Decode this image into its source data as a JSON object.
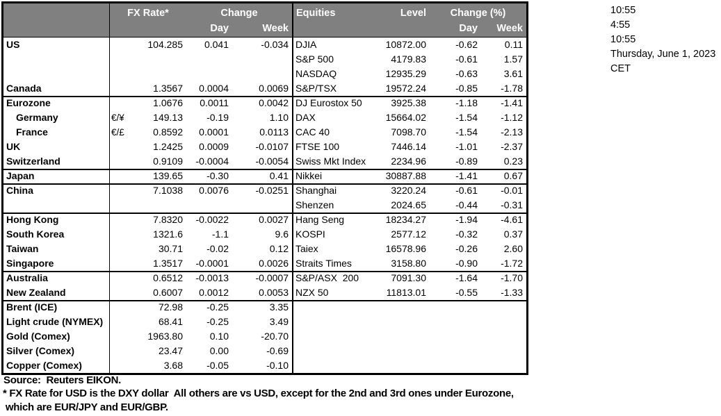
{
  "table": {
    "header": {
      "fx_rate": "FX Rate*",
      "change": "Change",
      "day": "Day",
      "week": "Week",
      "equities": "Equities",
      "level": "Level",
      "change_pct": "Change (%)",
      "day2": "Day",
      "week2": "Week"
    },
    "groups": [
      {
        "rows": [
          {
            "label": "US",
            "pair": "",
            "fx": "104.285",
            "fx_day": "0.041",
            "fx_week": "-0.034",
            "eq": "DJIA",
            "level": "10872.00",
            "eq_day": "-0.62",
            "eq_week": "0.11"
          },
          {
            "label": "",
            "pair": "",
            "fx": "",
            "fx_day": "",
            "fx_week": "",
            "eq": "S&P 500",
            "level": "4179.83",
            "eq_day": "-0.61",
            "eq_week": "1.57"
          },
          {
            "label": "",
            "pair": "",
            "fx": "",
            "fx_day": "",
            "fx_week": "",
            "eq": "NASDAQ",
            "level": "12935.29",
            "eq_day": "-0.63",
            "eq_week": "3.61"
          },
          {
            "label": "Canada",
            "pair": "",
            "fx": "1.3567",
            "fx_day": "0.0004",
            "fx_week": "0.0069",
            "eq": "S&P/TSX",
            "level": "19572.24",
            "eq_day": "-0.85",
            "eq_week": "-1.78"
          }
        ]
      },
      {
        "rows": [
          {
            "label": "Eurozone",
            "pair": "",
            "fx": "1.0676",
            "fx_day": "0.0011",
            "fx_week": "0.0042",
            "eq": "DJ Eurostox 50",
            "level": "3925.38",
            "eq_day": "-1.18",
            "eq_week": "-1.41"
          },
          {
            "label": "Germany",
            "indent": true,
            "pair": "€/¥",
            "fx": "149.13",
            "fx_day": "-0.19",
            "fx_week": "1.10",
            "eq": "DAX",
            "level": "15664.02",
            "eq_day": "-1.54",
            "eq_week": "-1.12"
          },
          {
            "label": "France",
            "indent": true,
            "pair": "€/£",
            "fx": "0.8592",
            "fx_day": "0.0001",
            "fx_week": "0.0113",
            "eq": "CAC 40",
            "level": "7098.70",
            "eq_day": "-1.54",
            "eq_week": "-2.13"
          },
          {
            "label": "UK",
            "pair": "",
            "fx": "1.2425",
            "fx_day": "0.0009",
            "fx_week": "-0.0107",
            "eq": "FTSE 100",
            "level": "7446.14",
            "eq_day": "-1.01",
            "eq_week": "-2.37"
          },
          {
            "label": "Switzerland",
            "pair": "",
            "fx": "0.9109",
            "fx_day": "-0.0004",
            "fx_week": "-0.0054",
            "eq": "Swiss Mkt Index",
            "level": "2234.96",
            "eq_day": "-0.89",
            "eq_week": "0.23"
          }
        ]
      },
      {
        "rows": [
          {
            "label": "Japan",
            "pair": "",
            "fx": "139.65",
            "fx_day": "-0.30",
            "fx_week": "0.41",
            "eq": "Nikkei",
            "level": "30887.88",
            "eq_day": "-1.41",
            "eq_week": "0.67"
          }
        ]
      },
      {
        "rows": [
          {
            "label": "China",
            "pair": "",
            "fx": "7.1038",
            "fx_day": "0.0076",
            "fx_week": "-0.0251",
            "eq": "Shanghai",
            "level": "3220.24",
            "eq_day": "-0.61",
            "eq_week": "-0.01"
          },
          {
            "label": "",
            "pair": "",
            "fx": "",
            "fx_day": "",
            "fx_week": "",
            "eq": "Shenzen",
            "level": "2024.65",
            "eq_day": "-0.44",
            "eq_week": "-0.31"
          }
        ]
      },
      {
        "rows": [
          {
            "label": "Hong Kong",
            "pair": "",
            "fx": "7.8320",
            "fx_day": "-0.0022",
            "fx_week": "0.0027",
            "eq": "Hang Seng",
            "level": "18234.27",
            "eq_day": "-1.94",
            "eq_week": "-4.61"
          },
          {
            "label": "South Korea",
            "pair": "",
            "fx": "1321.6",
            "fx_day": "-1.1",
            "fx_week": "9.6",
            "eq": "KOSPI",
            "level": "2577.12",
            "eq_day": "-0.32",
            "eq_week": "0.37"
          },
          {
            "label": "Taiwan",
            "pair": "",
            "fx": "30.71",
            "fx_day": "-0.02",
            "fx_week": "0.12",
            "eq": "Taiex",
            "level": "16578.96",
            "eq_day": "-0.26",
            "eq_week": "2.60"
          },
          {
            "label": "Singapore",
            "pair": "",
            "fx": "1.3517",
            "fx_day": "-0.0001",
            "fx_week": "0.0026",
            "eq": "Straits Times",
            "level": "3158.80",
            "eq_day": "-0.90",
            "eq_week": "-1.72"
          }
        ]
      },
      {
        "rows": [
          {
            "label": "Australia",
            "pair": "",
            "fx": "0.6512",
            "fx_day": "-0.0013",
            "fx_week": "-0.0007",
            "eq": "S&P/ASX  200",
            "level": "7091.30",
            "eq_day": "-1.64",
            "eq_week": "-1.70"
          },
          {
            "label": "New Zealand",
            "pair": "",
            "fx": "0.6007",
            "fx_day": "0.0012",
            "fx_week": "0.0053",
            "eq": "NZX 50",
            "level": "11813.01",
            "eq_day": "-0.55",
            "eq_week": "-1.33"
          }
        ]
      },
      {
        "rows": [
          {
            "label": "Brent (ICE)",
            "pair": "",
            "fx": "72.98",
            "fx_day": "-0.25",
            "fx_week": "3.35",
            "eq": "",
            "level": "",
            "eq_day": "",
            "eq_week": ""
          },
          {
            "label": "Light crude (NYMEX)",
            "pair": "",
            "fx": "68.41",
            "fx_day": "-0.25",
            "fx_week": "3.49",
            "eq": "",
            "level": "",
            "eq_day": "",
            "eq_week": ""
          },
          {
            "label": "Gold (Comex)",
            "pair": "",
            "fx": "1963.80",
            "fx_day": "0.10",
            "fx_week": "-20.70",
            "eq": "",
            "level": "",
            "eq_day": "",
            "eq_week": ""
          },
          {
            "label": "Silver (Comex)",
            "pair": "",
            "fx": "23.47",
            "fx_day": "0.00",
            "fx_week": "-0.69",
            "eq": "",
            "level": "",
            "eq_day": "",
            "eq_week": ""
          },
          {
            "label": "Copper (Comex)",
            "pair": "",
            "fx": "3.68",
            "fx_day": "-0.05",
            "fx_week": "-0.10",
            "eq": "",
            "level": "",
            "eq_day": "",
            "eq_week": ""
          }
        ]
      }
    ]
  },
  "timestamps": {
    "lines": [
      "10:55",
      "4:55",
      "10:55",
      "Thursday, June 1, 2023",
      "CET"
    ]
  },
  "footer": {
    "source": "Source:  Reuters EIKON.",
    "note1": "* FX Rate for USD is the DXY dollar  All others are vs USD, except for the 2nd and 3rd ones under Eurozone,",
    "note2": " which are EUR/JPY and EUR/GBP."
  },
  "colors": {
    "header_bg": "#808080",
    "header_text": "#ffffff",
    "border": "#000000"
  }
}
